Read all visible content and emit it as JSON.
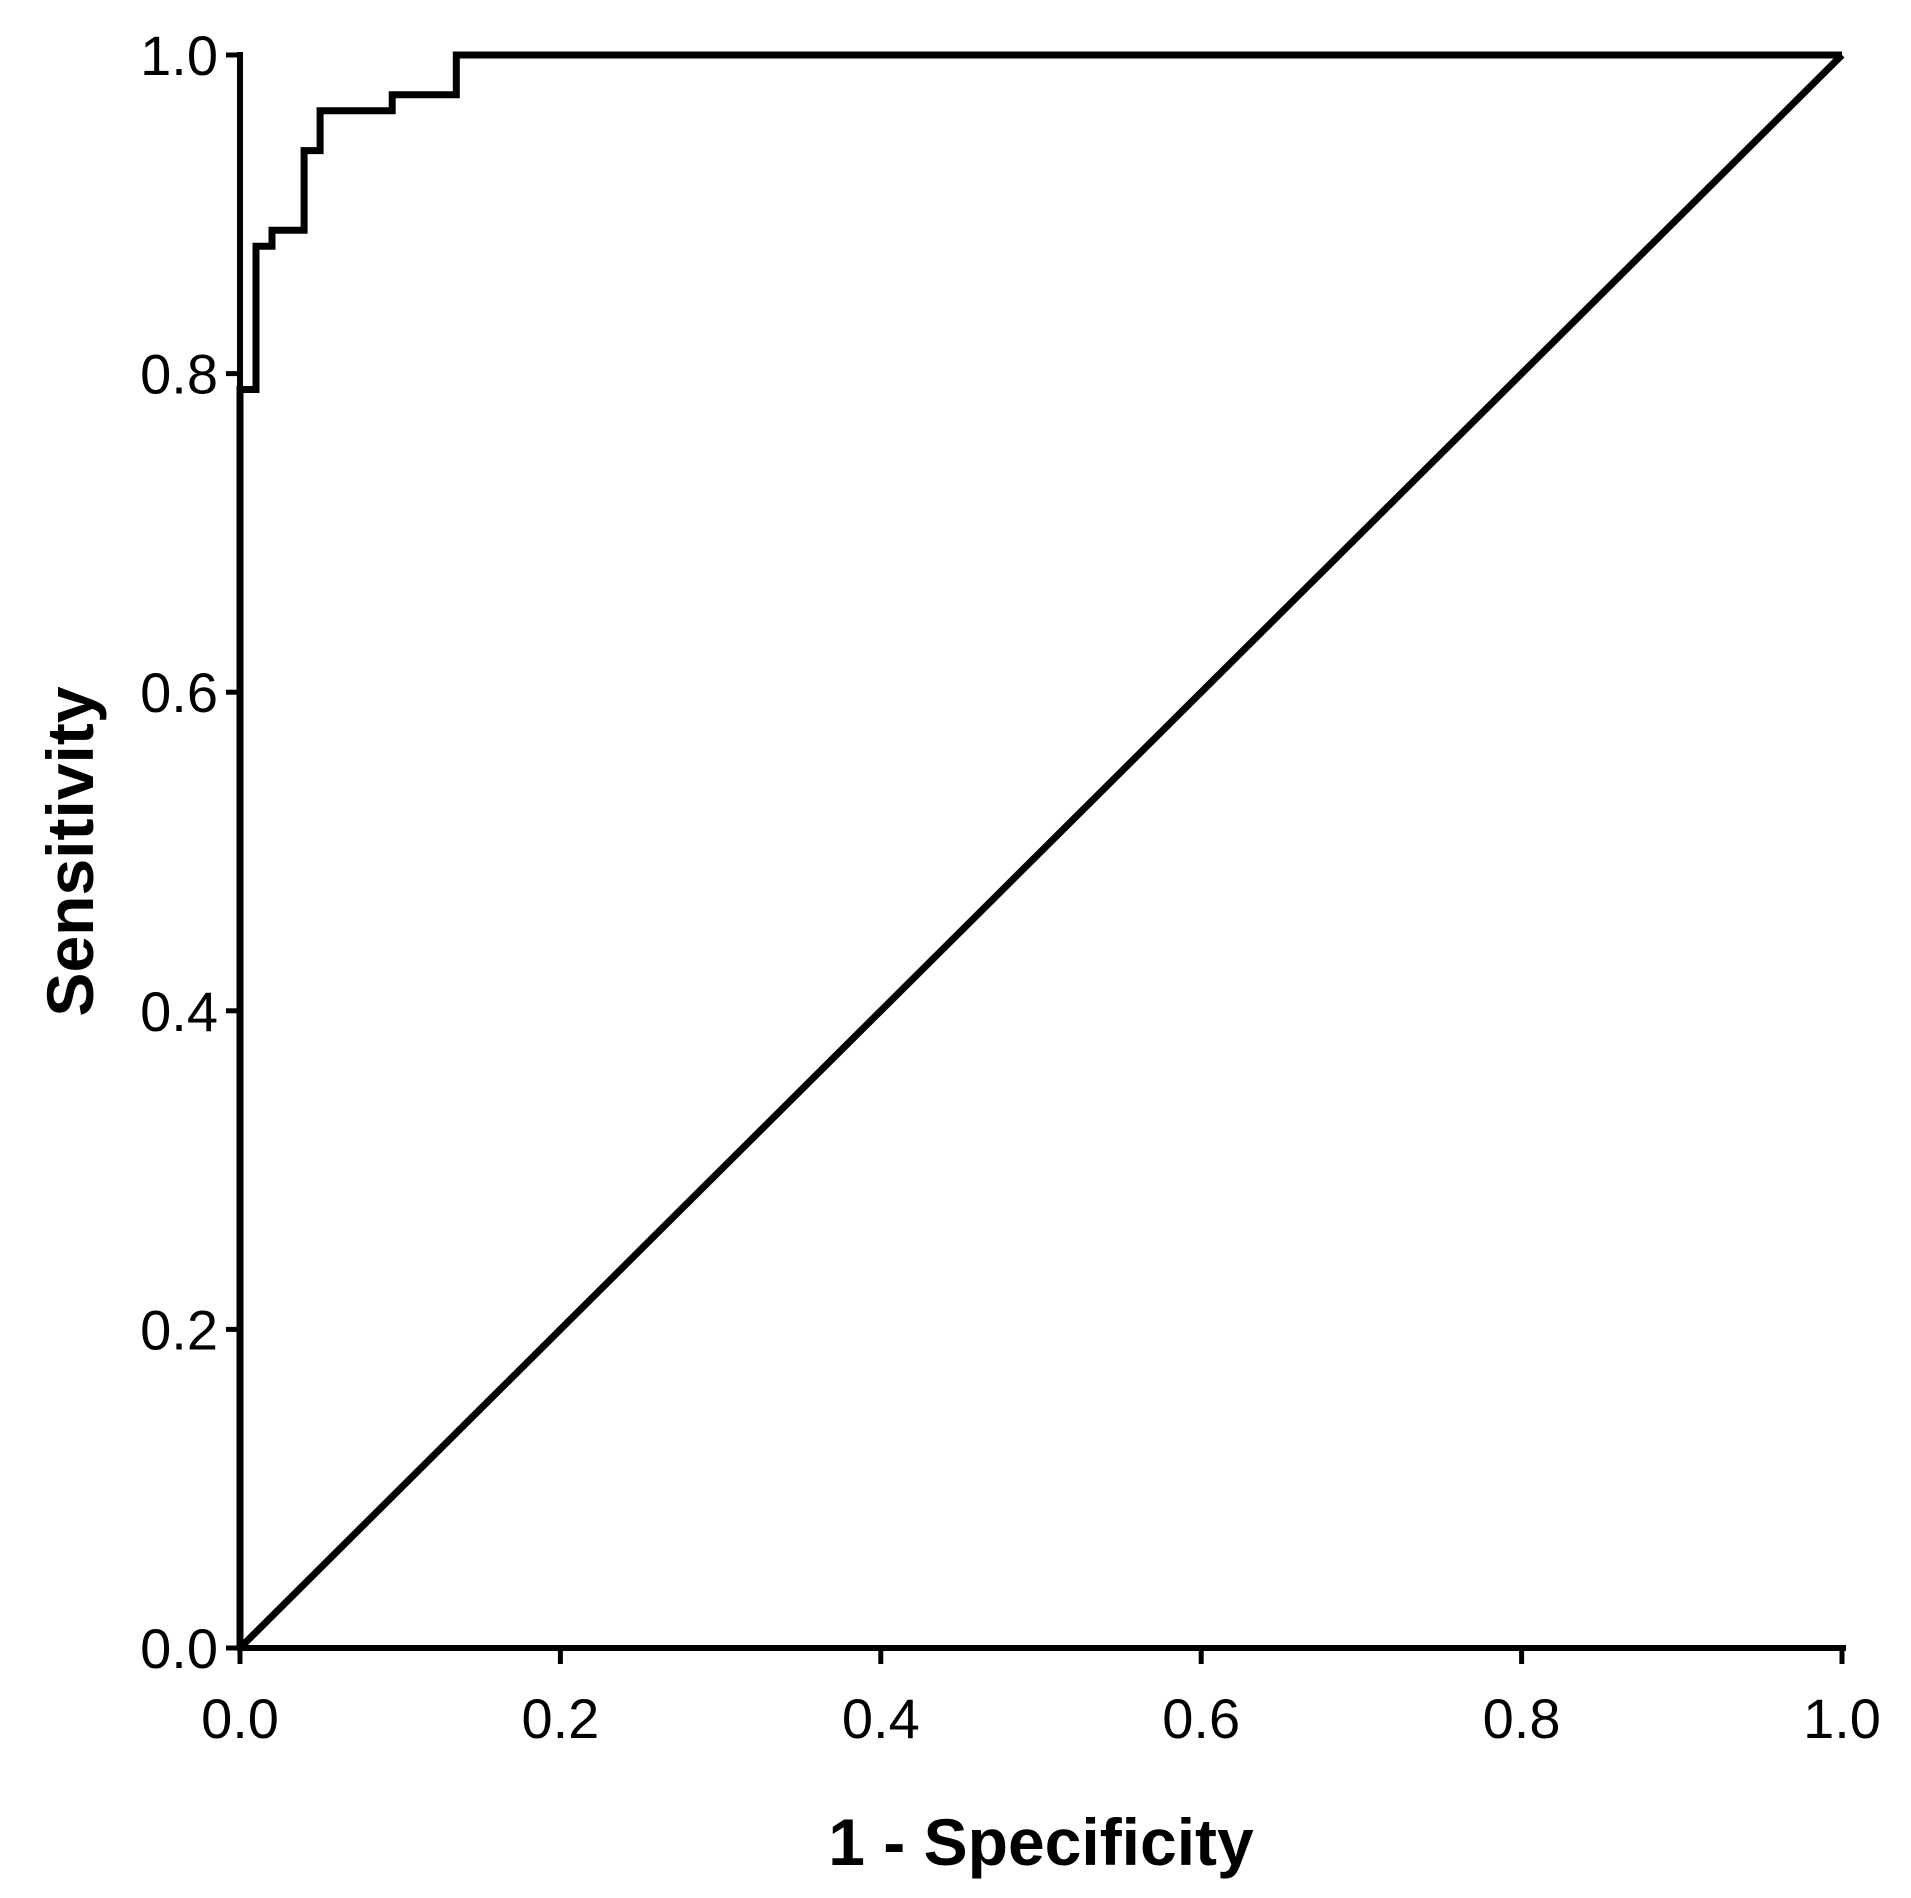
{
  "chart_data": {
    "type": "line",
    "title": "",
    "xlabel": "1 - Specificity",
    "ylabel": "Sensitivity",
    "xlim": [
      0.0,
      1.0
    ],
    "ylim": [
      0.0,
      1.0
    ],
    "x_ticks": [
      "0.0",
      "0.2",
      "0.4",
      "0.6",
      "0.8",
      "1.0"
    ],
    "y_ticks": [
      "0.0",
      "0.2",
      "0.4",
      "0.6",
      "0.8",
      "1.0"
    ],
    "grid": false,
    "legend": "none",
    "series": [
      {
        "x": [
          0.0,
          0.0,
          0.01,
          0.01,
          0.02,
          0.02,
          0.04,
          0.04,
          0.05,
          0.05,
          0.095,
          0.095,
          0.135,
          0.135,
          1.0
        ],
        "y": [
          0.0,
          0.79,
          0.79,
          0.88,
          0.88,
          0.89,
          0.89,
          0.94,
          0.94,
          0.965,
          0.965,
          0.975,
          0.975,
          1.0,
          1.0
        ],
        "color": "#000000",
        "style": "step"
      },
      {
        "x": [
          0.0,
          1.0
        ],
        "y": [
          0.0,
          1.0
        ],
        "color": "#000000",
        "style": "diagonal"
      }
    ]
  }
}
